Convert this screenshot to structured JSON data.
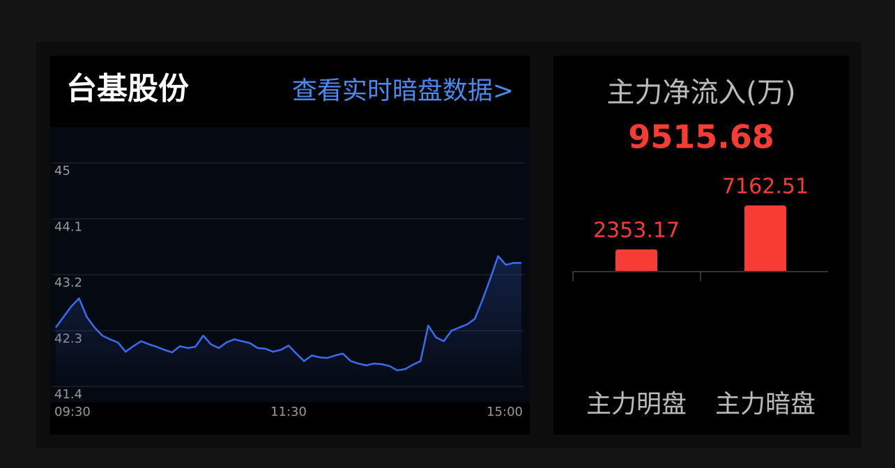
{
  "chart_data": [
    {
      "type": "line",
      "title": "台基股份",
      "link": "查看实时暗盘数据>",
      "categories": [
        "09:30",
        null,
        null,
        null,
        null,
        null,
        null,
        null,
        null,
        null,
        null,
        null,
        null,
        null,
        null,
        null,
        null,
        null,
        null,
        null,
        null,
        null,
        null,
        null,
        null,
        null,
        null,
        null,
        null,
        null,
        "11:30",
        null,
        null,
        null,
        null,
        null,
        null,
        null,
        null,
        null,
        null,
        null,
        null,
        null,
        null,
        null,
        null,
        null,
        null,
        null,
        null,
        null,
        null,
        null,
        null,
        null,
        null,
        null,
        null,
        null,
        "15:00"
      ],
      "series": [
        {
          "color": "#3a6cf4",
          "values": [
            42.35,
            42.52,
            42.69,
            42.82,
            42.52,
            42.35,
            42.22,
            42.16,
            42.11,
            41.96,
            42.05,
            42.13,
            42.08,
            42.04,
            41.99,
            41.95,
            42.05,
            42.02,
            42.04,
            42.22,
            42.08,
            42.02,
            42.11,
            42.16,
            42.13,
            42.1,
            42.02,
            42.01,
            41.96,
            41.99,
            42.06,
            41.93,
            41.81,
            41.9,
            41.87,
            41.86,
            41.9,
            41.93,
            41.81,
            41.77,
            41.74,
            41.77,
            41.76,
            41.73,
            41.66,
            41.68,
            41.75,
            41.81,
            42.38,
            42.19,
            42.13,
            42.3,
            42.35,
            42.4,
            42.49,
            42.8,
            43.14,
            43.5,
            43.36,
            43.39,
            43.39
          ]
        }
      ],
      "ylim": [
        41.4,
        45
      ],
      "yticks": [
        45,
        44.1,
        43.2,
        42.3,
        41.4
      ],
      "grid": true
    },
    {
      "type": "bar",
      "title": "主力净流入(万)",
      "total": 9515.68,
      "categories": [
        "主力明盘",
        "主力暗盘"
      ],
      "values": [
        2353.17,
        7162.51
      ],
      "color": "#f73c34"
    }
  ]
}
